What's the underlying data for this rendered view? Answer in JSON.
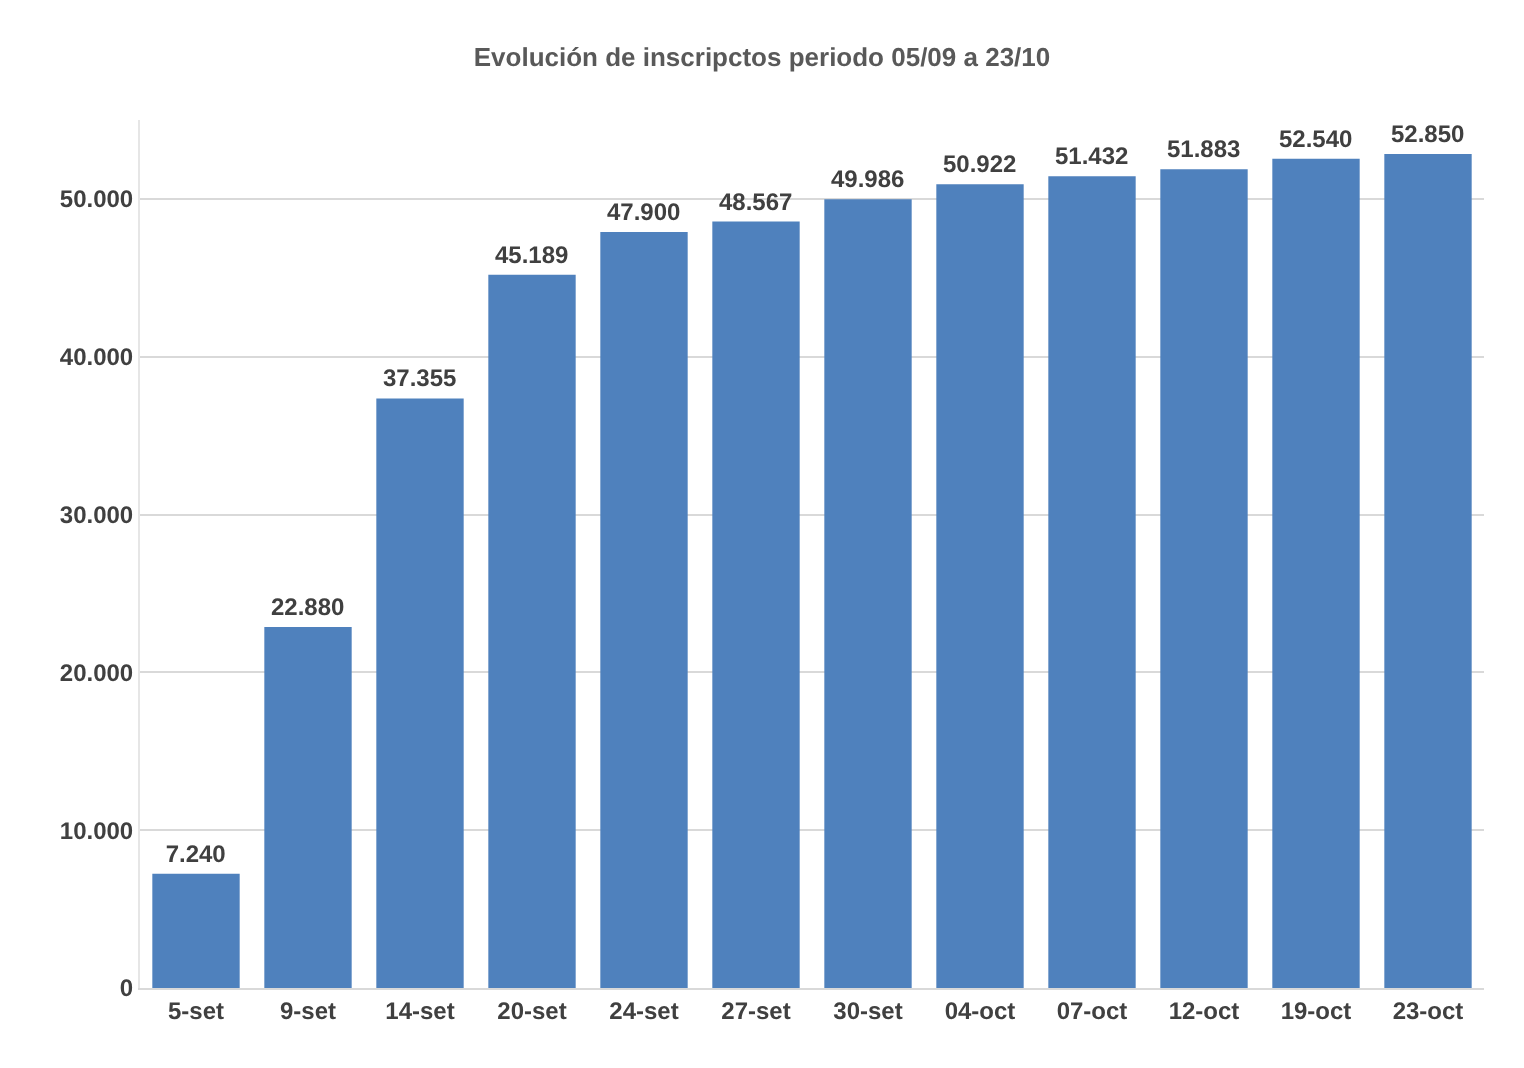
{
  "chart_data": {
    "type": "bar",
    "title": "Evolución de inscripctos periodo 05/09 a 23/10",
    "categories": [
      "5-set",
      "9-set",
      "14-set",
      "20-set",
      "24-set",
      "27-set",
      "30-set",
      "04-oct",
      "07-oct",
      "12-oct",
      "19-oct",
      "23-oct"
    ],
    "values": [
      7240,
      22880,
      37355,
      45189,
      47900,
      48567,
      49986,
      50922,
      51432,
      51883,
      52540,
      52850
    ],
    "value_labels": [
      "7.240",
      "22.880",
      "37.355",
      "45.189",
      "47.900",
      "48.567",
      "49.986",
      "50.922",
      "51.432",
      "51.883",
      "52.540",
      "52.850"
    ],
    "color": "#4f81bd",
    "ylim": [
      0,
      55000
    ],
    "yticks": [
      {
        "value": 0,
        "label": "0"
      },
      {
        "value": 10000,
        "label": "10.000"
      },
      {
        "value": 20000,
        "label": "20.000"
      },
      {
        "value": 30000,
        "label": "30.000"
      },
      {
        "value": 40000,
        "label": "40.000"
      },
      {
        "value": 50000,
        "label": "50.000"
      }
    ],
    "grid": "y"
  }
}
